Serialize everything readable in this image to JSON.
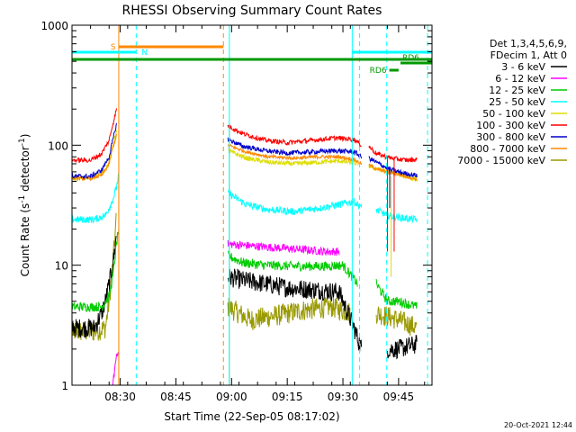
{
  "chart_data": {
    "type": "line",
    "title": "RHESSI Observing Summary Count Rates",
    "xlabel": "Start Time (22-Sep-05 08:17:02)",
    "ylabel_main": "Count Rate (s",
    "ylabel_sup1": "-1",
    "ylabel_mid": " detector",
    "ylabel_sup2": "-1",
    "ylabel_end": ")",
    "y_scale": "log",
    "ylim": [
      1,
      1000
    ],
    "xlim_minutes": [
      0,
      97
    ],
    "x_ticks": [
      {
        "label": "08:30",
        "minute": 13
      },
      {
        "label": "08:45",
        "minute": 28
      },
      {
        "label": "09:00",
        "minute": 43
      },
      {
        "label": "09:15",
        "minute": 58
      },
      {
        "label": "09:30",
        "minute": 73
      },
      {
        "label": "09:45",
        "minute": 88
      }
    ],
    "y_ticks": [
      {
        "label": "1",
        "value": 1
      },
      {
        "label": "10",
        "value": 10
      },
      {
        "label": "100",
        "value": 100
      },
      {
        "label": "1000",
        "value": 1000
      }
    ],
    "legend": {
      "position": "right",
      "header1": "Det 1,3,4,5,6,9,",
      "header2": "FDecim 1, Att 0"
    },
    "series": [
      {
        "name": "3 - 6 keV",
        "color": "#000000",
        "seg1": [
          [
            0,
            3
          ],
          [
            6,
            3
          ],
          [
            8,
            4
          ],
          [
            9,
            5
          ],
          [
            10,
            7
          ],
          [
            11,
            10
          ],
          [
            12,
            18
          ]
        ],
        "seg2": [
          [
            42,
            8
          ],
          [
            46,
            7.5
          ],
          [
            52,
            7
          ],
          [
            58,
            6.5
          ],
          [
            66,
            6.2
          ],
          [
            72,
            6
          ],
          [
            73,
            5
          ],
          [
            76,
            3
          ],
          [
            78,
            2
          ]
        ],
        "seg3": [
          [
            85,
            2
          ],
          [
            88,
            2
          ],
          [
            93,
            2.2
          ]
        ]
      },
      {
        "name": "6 - 12 keV",
        "color": "#ff00ff",
        "seg1": [
          [
            11,
            1
          ],
          [
            12,
            1.8
          ],
          [
            12.5,
            2
          ]
        ],
        "seg2": [
          [
            42,
            15
          ],
          [
            48,
            14.5
          ],
          [
            55,
            14
          ],
          [
            62,
            13.5
          ],
          [
            68,
            13
          ],
          [
            72,
            13
          ]
        ],
        "seg3": []
      },
      {
        "name": "12 - 25 keV",
        "color": "#00cc00",
        "seg1": [
          [
            0,
            4.5
          ],
          [
            8,
            4.5
          ],
          [
            10,
            5.5
          ],
          [
            11,
            8
          ],
          [
            12,
            15
          ],
          [
            12.5,
            20
          ]
        ],
        "seg2": [
          [
            42,
            12
          ],
          [
            46,
            10.5
          ],
          [
            52,
            10
          ],
          [
            60,
            9.8
          ],
          [
            68,
            9.8
          ],
          [
            73,
            10
          ],
          [
            77,
            7
          ]
        ],
        "seg3": [
          [
            82,
            7
          ],
          [
            85,
            5
          ],
          [
            88,
            5
          ],
          [
            93,
            4.5
          ]
        ]
      },
      {
        "name": "25 - 50 keV",
        "color": "#00ffff",
        "seg1": [
          [
            0,
            24
          ],
          [
            6,
            24
          ],
          [
            9,
            26
          ],
          [
            11,
            35
          ],
          [
            12,
            45
          ],
          [
            12.5,
            55
          ]
        ],
        "seg2": [
          [
            42,
            40
          ],
          [
            47,
            32
          ],
          [
            53,
            29
          ],
          [
            60,
            28
          ],
          [
            67,
            30
          ],
          [
            72,
            32
          ],
          [
            76,
            34
          ],
          [
            78,
            30
          ]
        ],
        "seg3": [
          [
            82,
            29
          ],
          [
            85,
            26
          ],
          [
            88,
            25
          ],
          [
            93,
            24
          ]
        ]
      },
      {
        "name": "50 - 100 keV",
        "color": "#dddd00",
        "seg1": [
          [
            0,
            53
          ],
          [
            5,
            53
          ],
          [
            8,
            58
          ],
          [
            10,
            70
          ],
          [
            11,
            100
          ],
          [
            12,
            130
          ]
        ],
        "seg2": [
          [
            42,
            90
          ],
          [
            47,
            78
          ],
          [
            53,
            72
          ],
          [
            60,
            70
          ],
          [
            66,
            72
          ],
          [
            72,
            74
          ],
          [
            77,
            70
          ]
        ],
        "seg3": [
          [
            80,
            67
          ],
          [
            83,
            62
          ],
          [
            88,
            57
          ],
          [
            93,
            52
          ]
        ]
      },
      {
        "name": "100 - 300 keV",
        "color": "#ff0000",
        "seg1": [
          [
            0,
            75
          ],
          [
            5,
            75
          ],
          [
            8,
            85
          ],
          [
            10,
            110
          ],
          [
            11,
            150
          ],
          [
            12,
            200
          ]
        ],
        "seg2": [
          [
            42,
            145
          ],
          [
            46,
            125
          ],
          [
            52,
            110
          ],
          [
            58,
            105
          ],
          [
            65,
            110
          ],
          [
            71,
            115
          ],
          [
            76,
            112
          ],
          [
            78,
            100
          ]
        ],
        "seg3": [
          [
            80,
            98
          ],
          [
            82,
            85
          ],
          [
            86,
            78
          ],
          [
            90,
            75
          ],
          [
            93,
            76
          ]
        ]
      },
      {
        "name": "300 - 800 keV",
        "color": "#0000cc",
        "seg1": [
          [
            0,
            55
          ],
          [
            5,
            55
          ],
          [
            8,
            62
          ],
          [
            10,
            80
          ],
          [
            11,
            110
          ],
          [
            12,
            150
          ]
        ],
        "seg2": [
          [
            42,
            112
          ],
          [
            46,
            98
          ],
          [
            52,
            90
          ],
          [
            58,
            86
          ],
          [
            65,
            88
          ],
          [
            71,
            90
          ],
          [
            76,
            88
          ],
          [
            78,
            80
          ]
        ],
        "seg3": [
          [
            80,
            78
          ],
          [
            82,
            72
          ],
          [
            86,
            62
          ],
          [
            90,
            58
          ],
          [
            93,
            56
          ]
        ]
      },
      {
        "name": "800 - 7000 keV",
        "color": "#ff8800",
        "seg1": [
          [
            0,
            53
          ],
          [
            5,
            53
          ],
          [
            8,
            56
          ],
          [
            10,
            70
          ],
          [
            11,
            95
          ],
          [
            12,
            120
          ]
        ],
        "seg2": [
          [
            42,
            100
          ],
          [
            47,
            88
          ],
          [
            53,
            80
          ],
          [
            60,
            78
          ],
          [
            66,
            80
          ],
          [
            72,
            80
          ],
          [
            76,
            76
          ],
          [
            78,
            70
          ]
        ],
        "seg3": [
          [
            80,
            68
          ],
          [
            83,
            62
          ],
          [
            88,
            57
          ],
          [
            93,
            52
          ]
        ]
      },
      {
        "name": "7000 - 15000 keV",
        "color": "#999900",
        "seg1": [
          [
            0,
            2.8
          ],
          [
            6,
            2.8
          ],
          [
            9,
            3
          ],
          [
            10,
            5
          ],
          [
            11,
            10
          ],
          [
            12,
            26
          ]
        ],
        "seg2": [
          [
            42,
            4.5
          ],
          [
            48,
            3.5
          ],
          [
            55,
            3.8
          ],
          [
            62,
            4.2
          ],
          [
            70,
            4.5
          ],
          [
            75,
            4
          ]
        ],
        "seg3": [
          [
            82,
            4
          ],
          [
            88,
            3.5
          ],
          [
            93,
            3
          ]
        ]
      }
    ],
    "attenuator": {
      "label": "A"
    },
    "bars": [
      {
        "label": "S",
        "color": "#ff8800",
        "x_start": 12.5,
        "x_end": 40.8,
        "level": 0.94,
        "label_side": "left"
      },
      {
        "label": "N",
        "color": "#00ffff",
        "x_start": 0,
        "x_end": 17.3,
        "level": 0.925,
        "label_side": "right"
      },
      {
        "label": "N",
        "color": "#00ffff",
        "x_start": 75.5,
        "x_end": 97,
        "level": 0.925,
        "label_side": "none"
      },
      {
        "label": "",
        "color": "#009900",
        "x_start": 0,
        "x_end": 97,
        "level": 0.905,
        "label_side": "none"
      },
      {
        "label": "RD6",
        "color": "#009900",
        "x_start": 88.5,
        "x_end": 97,
        "level": 0.895,
        "label_side": "top"
      },
      {
        "label": "RD6",
        "color": "#009900",
        "x_start": 85.5,
        "x_end": 88,
        "level": 0.875,
        "label_side": "left"
      }
    ],
    "vlines": [
      {
        "minute": 0,
        "color": "#00ffff",
        "dash": false
      },
      {
        "minute": 12.6,
        "color": "#ff8800",
        "dash": false
      },
      {
        "minute": 17.3,
        "color": "#00ffff",
        "dash": true
      },
      {
        "minute": 40.8,
        "color": "#ff8800",
        "dash": true
      },
      {
        "minute": 42.4,
        "color": "#00ffff",
        "dash": false
      },
      {
        "minute": 75.5,
        "color": "#00ffff",
        "dash": false
      },
      {
        "minute": 77.5,
        "color": "#00ffff",
        "dash": true
      },
      {
        "minute": 84.8,
        "color": "#00ffff",
        "dash": true
      },
      {
        "minute": 95.8,
        "color": "#00ffff",
        "dash": true
      }
    ]
  },
  "timestamp": "20-Oct-2021 12:44"
}
